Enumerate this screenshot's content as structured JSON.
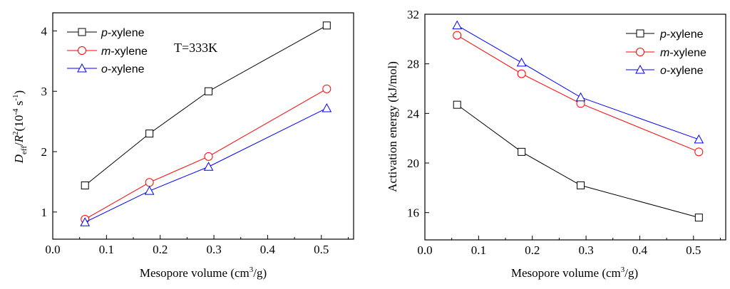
{
  "chart_data": [
    {
      "type": "line",
      "title": "",
      "annotation": "T=333K",
      "xlabel": "Mesopore volume  (cm3/g)",
      "xlabel_parts": {
        "main": "Mesopore volume  (cm",
        "sup": "3",
        "end": "/g)"
      },
      "ylabel": "Deff/R2(10-4 s-1)",
      "ylabel_parts": {
        "D": "D",
        "eff": "eff",
        "slash": "/",
        "R": "R",
        "sq": "2",
        "paren_open": "(10",
        "exp": "-4",
        "s": " s",
        "sexp": "-1",
        "paren_close": ")"
      },
      "xlim": [
        0.0,
        0.56
      ],
      "ylim": [
        0.55,
        4.3
      ],
      "x_ticks": [
        "0.0",
        "0.1",
        "0.2",
        "0.3",
        "0.4",
        "0.5"
      ],
      "x_tick_values": [
        0.0,
        0.1,
        0.2,
        0.3,
        0.4,
        0.5
      ],
      "y_ticks": [
        "1",
        "2",
        "3",
        "4"
      ],
      "y_tick_values": [
        1,
        2,
        3,
        4
      ],
      "x": [
        0.06,
        0.18,
        0.29,
        0.51
      ],
      "legend_position": "top-left",
      "series": [
        {
          "name": "p-xylene",
          "prefix": "p",
          "suffix": "-xylene",
          "marker": "square",
          "color": "#000000",
          "values": [
            1.44,
            2.3,
            3.0,
            4.09
          ]
        },
        {
          "name": "m-xylene",
          "prefix": "m",
          "suffix": "-xylene",
          "marker": "circle",
          "color": "#ff0000",
          "values": [
            0.88,
            1.49,
            1.92,
            3.04
          ]
        },
        {
          "name": "o-xylene",
          "prefix": "o",
          "suffix": "-xylene",
          "marker": "triangle",
          "color": "#0000ff",
          "values": [
            0.83,
            1.35,
            1.75,
            2.72
          ]
        }
      ]
    },
    {
      "type": "line",
      "title": "",
      "xlabel": "Mesopore volume (cm3/g)",
      "xlabel_parts": {
        "main": "Mesopore volume (cm",
        "sup": "3",
        "end": "/g)"
      },
      "ylabel": "Activation energy (kJ/mol)",
      "xlim": [
        0.0,
        0.56
      ],
      "ylim": [
        13.8,
        32.0
      ],
      "x_ticks": [
        "0.0",
        "0.1",
        "0.2",
        "0.3",
        "0.4",
        "0.5"
      ],
      "x_tick_values": [
        0.0,
        0.1,
        0.2,
        0.3,
        0.4,
        0.5
      ],
      "y_ticks": [
        "16",
        "20",
        "24",
        "28",
        "32"
      ],
      "y_tick_values": [
        16,
        20,
        24,
        28,
        32
      ],
      "x": [
        0.06,
        0.18,
        0.29,
        0.51
      ],
      "legend_position": "top-right",
      "series": [
        {
          "name": "p-xylene",
          "prefix": "p",
          "suffix": "-xylene",
          "marker": "square",
          "color": "#000000",
          "values": [
            24.7,
            20.9,
            18.2,
            15.6
          ]
        },
        {
          "name": "m-xylene",
          "prefix": "m",
          "suffix": "-xylene",
          "marker": "circle",
          "color": "#ff0000",
          "values": [
            30.3,
            27.2,
            24.8,
            20.9
          ]
        },
        {
          "name": "o-xylene",
          "prefix": "o",
          "suffix": "-xylene",
          "marker": "triangle",
          "color": "#0000ff",
          "values": [
            31.1,
            28.1,
            25.3,
            21.9
          ]
        }
      ]
    }
  ]
}
